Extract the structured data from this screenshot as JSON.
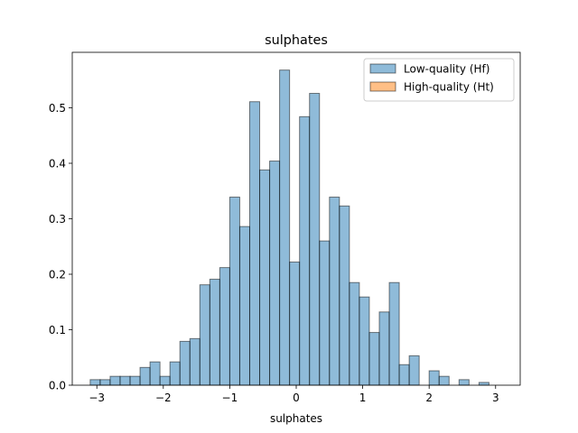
{
  "chart_data": {
    "type": "bar",
    "title": "sulphates",
    "xlabel": "sulphates",
    "ylabel": "",
    "xlim": [
      -3.37,
      3.37
    ],
    "ylim": [
      0,
      0.6
    ],
    "xticks": [
      -3,
      -2,
      -1,
      0,
      1,
      2,
      3
    ],
    "xtick_labels": [
      "−3",
      "−2",
      "−1",
      "0",
      "1",
      "2",
      "3"
    ],
    "yticks": [
      0,
      0.1,
      0.2,
      0.3,
      0.4,
      0.5
    ],
    "ytick_labels": [
      "0.0",
      "0.1",
      "0.2",
      "0.3",
      "0.4",
      "0.5"
    ],
    "grid": false,
    "legend_position": "top-right",
    "bin_edges": [
      -3.1,
      -2.95,
      -2.8,
      -2.65,
      -2.5,
      -2.35,
      -2.2,
      -2.05,
      -1.9,
      -1.75,
      -1.6,
      -1.45,
      -1.3,
      -1.15,
      -1.0,
      -0.85,
      -0.7,
      -0.55,
      -0.4,
      -0.25,
      -0.1,
      0.05,
      0.2,
      0.35,
      0.5,
      0.65,
      0.8,
      0.95,
      1.1,
      1.25,
      1.4,
      1.55,
      1.7,
      1.85,
      2.0,
      2.15,
      2.3,
      2.45,
      2.6,
      2.75,
      2.9,
      3.05
    ],
    "series": [
      {
        "name": "Low-quality (Hf)",
        "color": "#1f77b4",
        "values": [
          0.01,
          0.01,
          0.016,
          0.016,
          0.016,
          0.032,
          0.042,
          0.016,
          0.042,
          0.079,
          0.084,
          0.181,
          0.191,
          0.212,
          0.339,
          0.286,
          0.511,
          0.388,
          0.404,
          0.568,
          0.222,
          0.484,
          0.526,
          0.26,
          0.339,
          0.323,
          0.185,
          0.159,
          0.095,
          0.132,
          0.185,
          0.037,
          0.053,
          0.0,
          0.026,
          0.016,
          0.0,
          0.01,
          0.0,
          0.005,
          0.0
        ]
      },
      {
        "name": "High-quality (Ht)",
        "color": "#ff7f0e",
        "values": []
      }
    ]
  }
}
